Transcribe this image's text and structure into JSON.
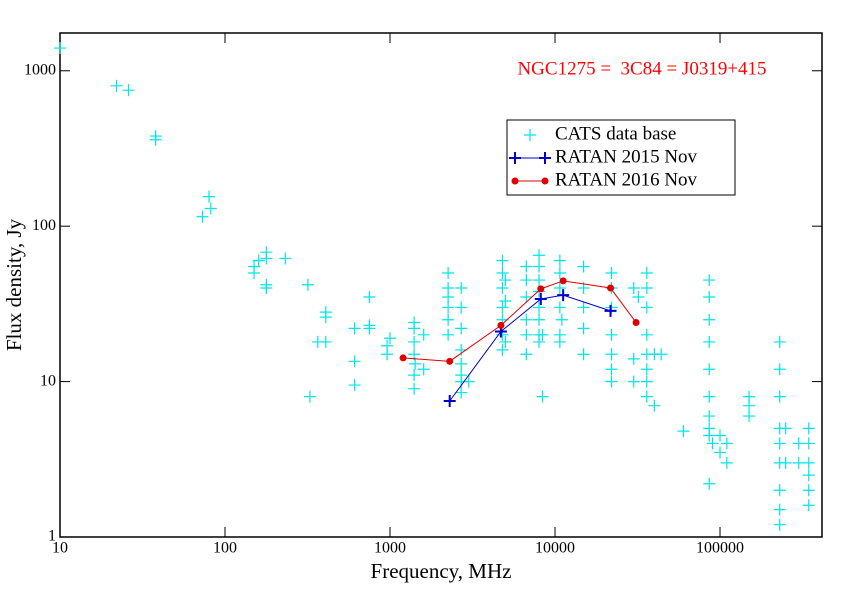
{
  "chart_data": {
    "type": "scatter",
    "annotation": "NGC1275 =  3C84 = J0319+415",
    "x_label": "Frequency, MHz",
    "y_label": "Flux density,  Jy",
    "x_log": true,
    "y_log": true,
    "xlim": [
      10,
      415000
    ],
    "ylim": [
      1,
      1750
    ],
    "xticks": [
      10,
      100,
      1000,
      10000,
      100000
    ],
    "yticks": [
      1,
      10,
      100,
      1000
    ],
    "series": [
      {
        "name": "CATS data base",
        "color": "#00e5e5",
        "marker": "plus",
        "line": false,
        "x": [
          10,
          22,
          26,
          38,
          38,
          73,
          80,
          82,
          150,
          150,
          160,
          178,
          178,
          178,
          178,
          232,
          318,
          327,
          365,
          408,
          408,
          408,
          610,
          610,
          610,
          750,
          750,
          750,
          960,
          960,
          1000,
          1400,
          1400,
          1400,
          1400,
          1400,
          1400,
          1420,
          1600,
          1600,
          2250,
          2250,
          2250,
          2250,
          2250,
          2250,
          2700,
          2700,
          2700,
          2700,
          2700,
          2700,
          2700,
          2700,
          3000,
          4800,
          4800,
          4800,
          4800,
          4800,
          4800,
          4800,
          5000,
          5000,
          5000,
          6700,
          6700,
          6700,
          6700,
          6700,
          6700,
          8000,
          8000,
          8000,
          8000,
          8000,
          8000,
          8000,
          8000,
          8400,
          8400,
          10700,
          10700,
          10700,
          10700,
          10700,
          10700,
          11000,
          14900,
          14900,
          14900,
          14900,
          14900,
          22000,
          22000,
          22000,
          22000,
          22000,
          22000,
          22000,
          30000,
          30000,
          30000,
          32000,
          36000,
          36000,
          36000,
          36000,
          36000,
          36000,
          36000,
          36000,
          40000,
          40000,
          44000,
          60000,
          86000,
          86000,
          86000,
          86000,
          86000,
          86000,
          86000,
          86000,
          86000,
          86000,
          90000,
          100000,
          100000,
          110000,
          110000,
          150000,
          150000,
          150000,
          230000,
          230000,
          230000,
          230000,
          230000,
          230000,
          230000,
          230000,
          230000,
          250000,
          250000,
          300000,
          300000,
          345000,
          345000,
          345000,
          345000,
          345000,
          345000
        ],
        "values": [
          1400,
          800,
          750,
          380,
          360,
          115,
          155,
          130,
          55,
          50,
          60,
          68,
          62,
          42,
          40,
          62,
          42,
          8,
          18,
          28,
          26,
          18,
          22,
          13.5,
          9.5,
          35,
          23,
          22,
          17,
          15,
          19,
          24,
          22,
          18,
          15,
          11,
          9,
          13,
          20,
          12,
          50,
          40,
          35,
          30,
          25,
          20,
          40,
          30,
          22,
          16,
          13,
          11,
          10,
          8.5,
          10,
          60,
          50,
          40,
          30,
          25,
          20,
          16,
          45,
          33,
          18,
          55,
          45,
          35,
          25,
          20,
          15,
          65,
          55,
          45,
          38,
          30,
          25,
          20,
          18,
          8,
          20,
          60,
          50,
          40,
          30,
          20,
          18,
          25,
          55,
          40,
          30,
          22,
          15,
          50,
          40,
          30,
          20,
          15,
          12,
          10,
          40,
          14,
          10,
          35,
          50,
          40,
          30,
          20,
          15,
          12,
          10,
          8,
          15,
          7,
          15,
          4.8,
          45,
          35,
          25,
          18,
          12,
          8,
          6,
          5,
          4.5,
          2.2,
          4,
          4.5,
          3.5,
          4,
          3,
          8,
          7,
          6,
          18,
          12,
          8,
          5,
          4,
          3,
          2,
          1.5,
          1.2,
          5,
          3,
          4,
          3,
          5,
          4,
          3,
          2.5,
          2,
          1.6
        ]
      },
      {
        "name": "RATAN 2015 Nov",
        "color": "#0000cc",
        "marker": "plus",
        "line": true,
        "x": [
          2300,
          4700,
          8200,
          11200,
          21700
        ],
        "values": [
          7.5,
          21,
          34,
          36,
          28.5
        ]
      },
      {
        "name": "RATAN 2016 Nov",
        "color": "#e00000",
        "marker": "circle",
        "line": true,
        "x": [
          1200,
          2300,
          4700,
          8200,
          11200,
          21700,
          31000
        ],
        "values": [
          14.2,
          13.5,
          23,
          39.5,
          44.5,
          40,
          24
        ]
      }
    ]
  }
}
